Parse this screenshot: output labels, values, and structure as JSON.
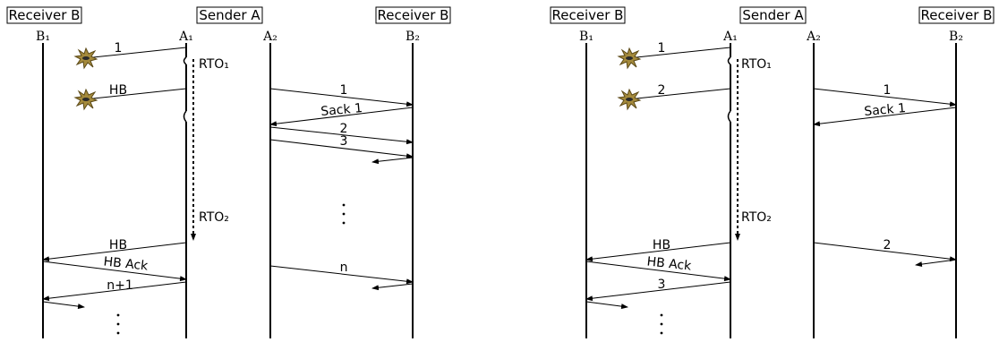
{
  "left": {
    "headers": {
      "b1": "Receiver B",
      "a": "Sender A",
      "b2": "Receiver B"
    },
    "lifelines": {
      "b1": "B₁",
      "a1": "A₁",
      "a2": "A₂",
      "b2": "B₂"
    },
    "msgs": {
      "m1": "1",
      "hb1": "HB",
      "p1": "1",
      "sack": "Sack 1",
      "p2": "2",
      "p3": "3",
      "hb2": "HB",
      "hback": "HB Ack",
      "n1": "n+1",
      "n": "n"
    },
    "rto1": "RTO₁",
    "rto2": "RTO₂"
  },
  "right": {
    "headers": {
      "b1": "Receiver B",
      "a": "Sender A",
      "b2": "Receiver B"
    },
    "lifelines": {
      "b1": "B₁",
      "a1": "A₁",
      "a2": "A₂",
      "b2": "B₂"
    },
    "msgs": {
      "m1": "1",
      "m2": "2",
      "p1": "1",
      "sack": "Sack 1",
      "hb": "HB",
      "hback": "HB Ack",
      "m3": "3",
      "p2": "2"
    },
    "rto1": "RTO₁",
    "rto2": "RTO₂"
  }
}
